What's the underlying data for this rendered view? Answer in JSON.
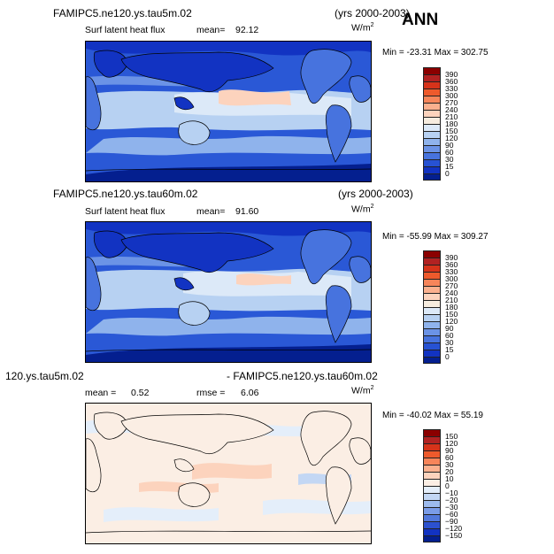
{
  "header": {
    "season": "ANN"
  },
  "panels": [
    {
      "case": "FAMIPC5.ne120.ys.tau5m.02",
      "years": "(yrs 2000-2003)",
      "variable": "Surf latent heat flux",
      "stat_label": "mean=",
      "stat_value": "92.12",
      "units_base": "W/m",
      "units_exp": "2",
      "minmax": "Min = -23.31 Max = 302.75",
      "colorbar": {
        "labels": [
          "390",
          "360",
          "330",
          "300",
          "270",
          "240",
          "210",
          "180",
          "150",
          "120",
          "90",
          "60",
          "30",
          "15",
          "0"
        ],
        "colors": [
          "#8b0000",
          "#b22222",
          "#d6331a",
          "#ee5a2c",
          "#f7855a",
          "#fbb08e",
          "#fcd3bd",
          "#f6ecdf",
          "#dce9f8",
          "#b7d1f2",
          "#8fb3ec",
          "#6b93e6",
          "#4773de",
          "#2752d3",
          "#1233c2",
          "#041f8f"
        ]
      }
    },
    {
      "case": "FAMIPC5.ne120.ys.tau60m.02",
      "years": "(yrs 2000-2003)",
      "variable": "Surf latent heat flux",
      "stat_label": "mean=",
      "stat_value": "91.60",
      "units_base": "W/m",
      "units_exp": "2",
      "minmax": "Min = -55.99 Max = 309.27",
      "colorbar": {
        "labels": [
          "390",
          "360",
          "330",
          "300",
          "270",
          "240",
          "210",
          "180",
          "150",
          "120",
          "90",
          "60",
          "30",
          "15",
          "0"
        ],
        "colors": [
          "#8b0000",
          "#b22222",
          "#d6331a",
          "#ee5a2c",
          "#f7855a",
          "#fbb08e",
          "#fcd3bd",
          "#f6ecdf",
          "#dce9f8",
          "#b7d1f2",
          "#8fb3ec",
          "#6b93e6",
          "#4773de",
          "#2752d3",
          "#1233c2",
          "#041f8f"
        ]
      }
    },
    {
      "case_left": "120.ys.tau5m.02",
      "case_right": "- FAMIPC5.ne120.ys.tau60m.02",
      "mean_label": "mean =",
      "mean_value": "0.52",
      "rmse_label": "rmse =",
      "rmse_value": "6.06",
      "units_base": "W/m",
      "units_exp": "2",
      "minmax": "Min = -40.02 Max =  55.19",
      "colorbar": {
        "labels": [
          "150",
          "120",
          "90",
          "60",
          "30",
          "20",
          "10",
          "0",
          "−10",
          "−20",
          "−30",
          "−60",
          "−90",
          "−120",
          "−150"
        ],
        "colors": [
          "#8b0000",
          "#b22222",
          "#d6331a",
          "#ee5a2c",
          "#f7855a",
          "#fbb08e",
          "#fcd3bd",
          "#fbeee4",
          "#e4eefa",
          "#c3d7f4",
          "#9dbbee",
          "#7a9ce8",
          "#5178dc",
          "#2c51cf",
          "#1233c2",
          "#041f8f"
        ]
      }
    }
  ]
}
